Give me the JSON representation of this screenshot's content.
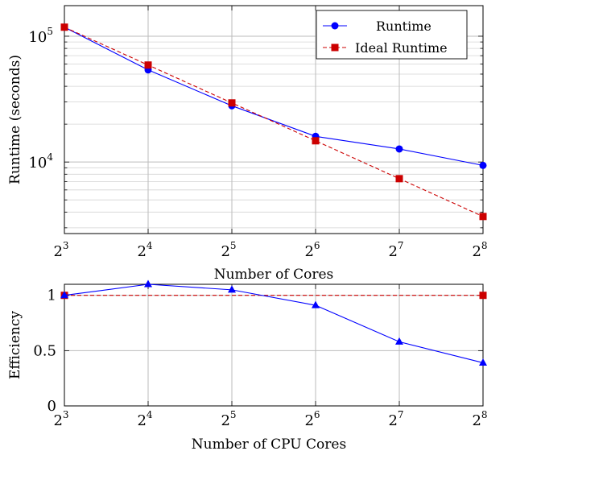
{
  "chart_data": [
    {
      "type": "line",
      "x_scale": "log2",
      "y_scale": "log10",
      "x": [
        8,
        16,
        32,
        64,
        128,
        256
      ],
      "x_tick_labels": [
        {
          "base": "2",
          "exp": "3"
        },
        {
          "base": "2",
          "exp": "4"
        },
        {
          "base": "2",
          "exp": "5"
        },
        {
          "base": "2",
          "exp": "6"
        },
        {
          "base": "2",
          "exp": "7"
        },
        {
          "base": "2",
          "exp": "8"
        }
      ],
      "y_ticks": [
        {
          "value": 10000,
          "base": "10",
          "exp": "4"
        },
        {
          "value": 100000,
          "base": "10",
          "exp": "5"
        }
      ],
      "xlabel": "Number of Cores",
      "ylabel": "Runtime (seconds)",
      "xlim": [
        8,
        256
      ],
      "ylim": [
        2700,
        175000
      ],
      "grid": true,
      "legend_position": "top-right",
      "series": [
        {
          "name": "Runtime",
          "color": "#0000ff",
          "marker": "circle",
          "style": "solid",
          "values": [
            118000,
            54000,
            28000,
            16000,
            12700,
            9400
          ]
        },
        {
          "name": "Ideal Runtime",
          "color": "#cc0000",
          "marker": "square",
          "style": "dashed",
          "values": [
            118000,
            59000,
            29500,
            14750,
            7375,
            3690
          ]
        }
      ]
    },
    {
      "type": "line",
      "x_scale": "log2",
      "x": [
        8,
        16,
        32,
        64,
        128,
        256
      ],
      "x_tick_labels": [
        {
          "base": "2",
          "exp": "3"
        },
        {
          "base": "2",
          "exp": "4"
        },
        {
          "base": "2",
          "exp": "5"
        },
        {
          "base": "2",
          "exp": "6"
        },
        {
          "base": "2",
          "exp": "7"
        },
        {
          "base": "2",
          "exp": "8"
        }
      ],
      "y_tick_labels": [
        "0",
        "0.5",
        "1"
      ],
      "y_ticks": [
        0,
        0.5,
        1
      ],
      "xlabel": "Number of CPU Cores",
      "ylabel": "Efficiency",
      "xlim": [
        8,
        256
      ],
      "ylim": [
        0,
        1.1
      ],
      "grid": true,
      "series": [
        {
          "color": "#0000ff",
          "marker": "triangle",
          "style": "solid",
          "values": [
            1.0,
            1.1,
            1.05,
            0.91,
            0.58,
            0.39
          ]
        },
        {
          "color": "#cc0000",
          "marker": "square",
          "style": "dashed",
          "values": [
            1.0,
            1.0,
            1.0,
            1.0,
            1.0,
            1.0
          ]
        }
      ]
    }
  ]
}
